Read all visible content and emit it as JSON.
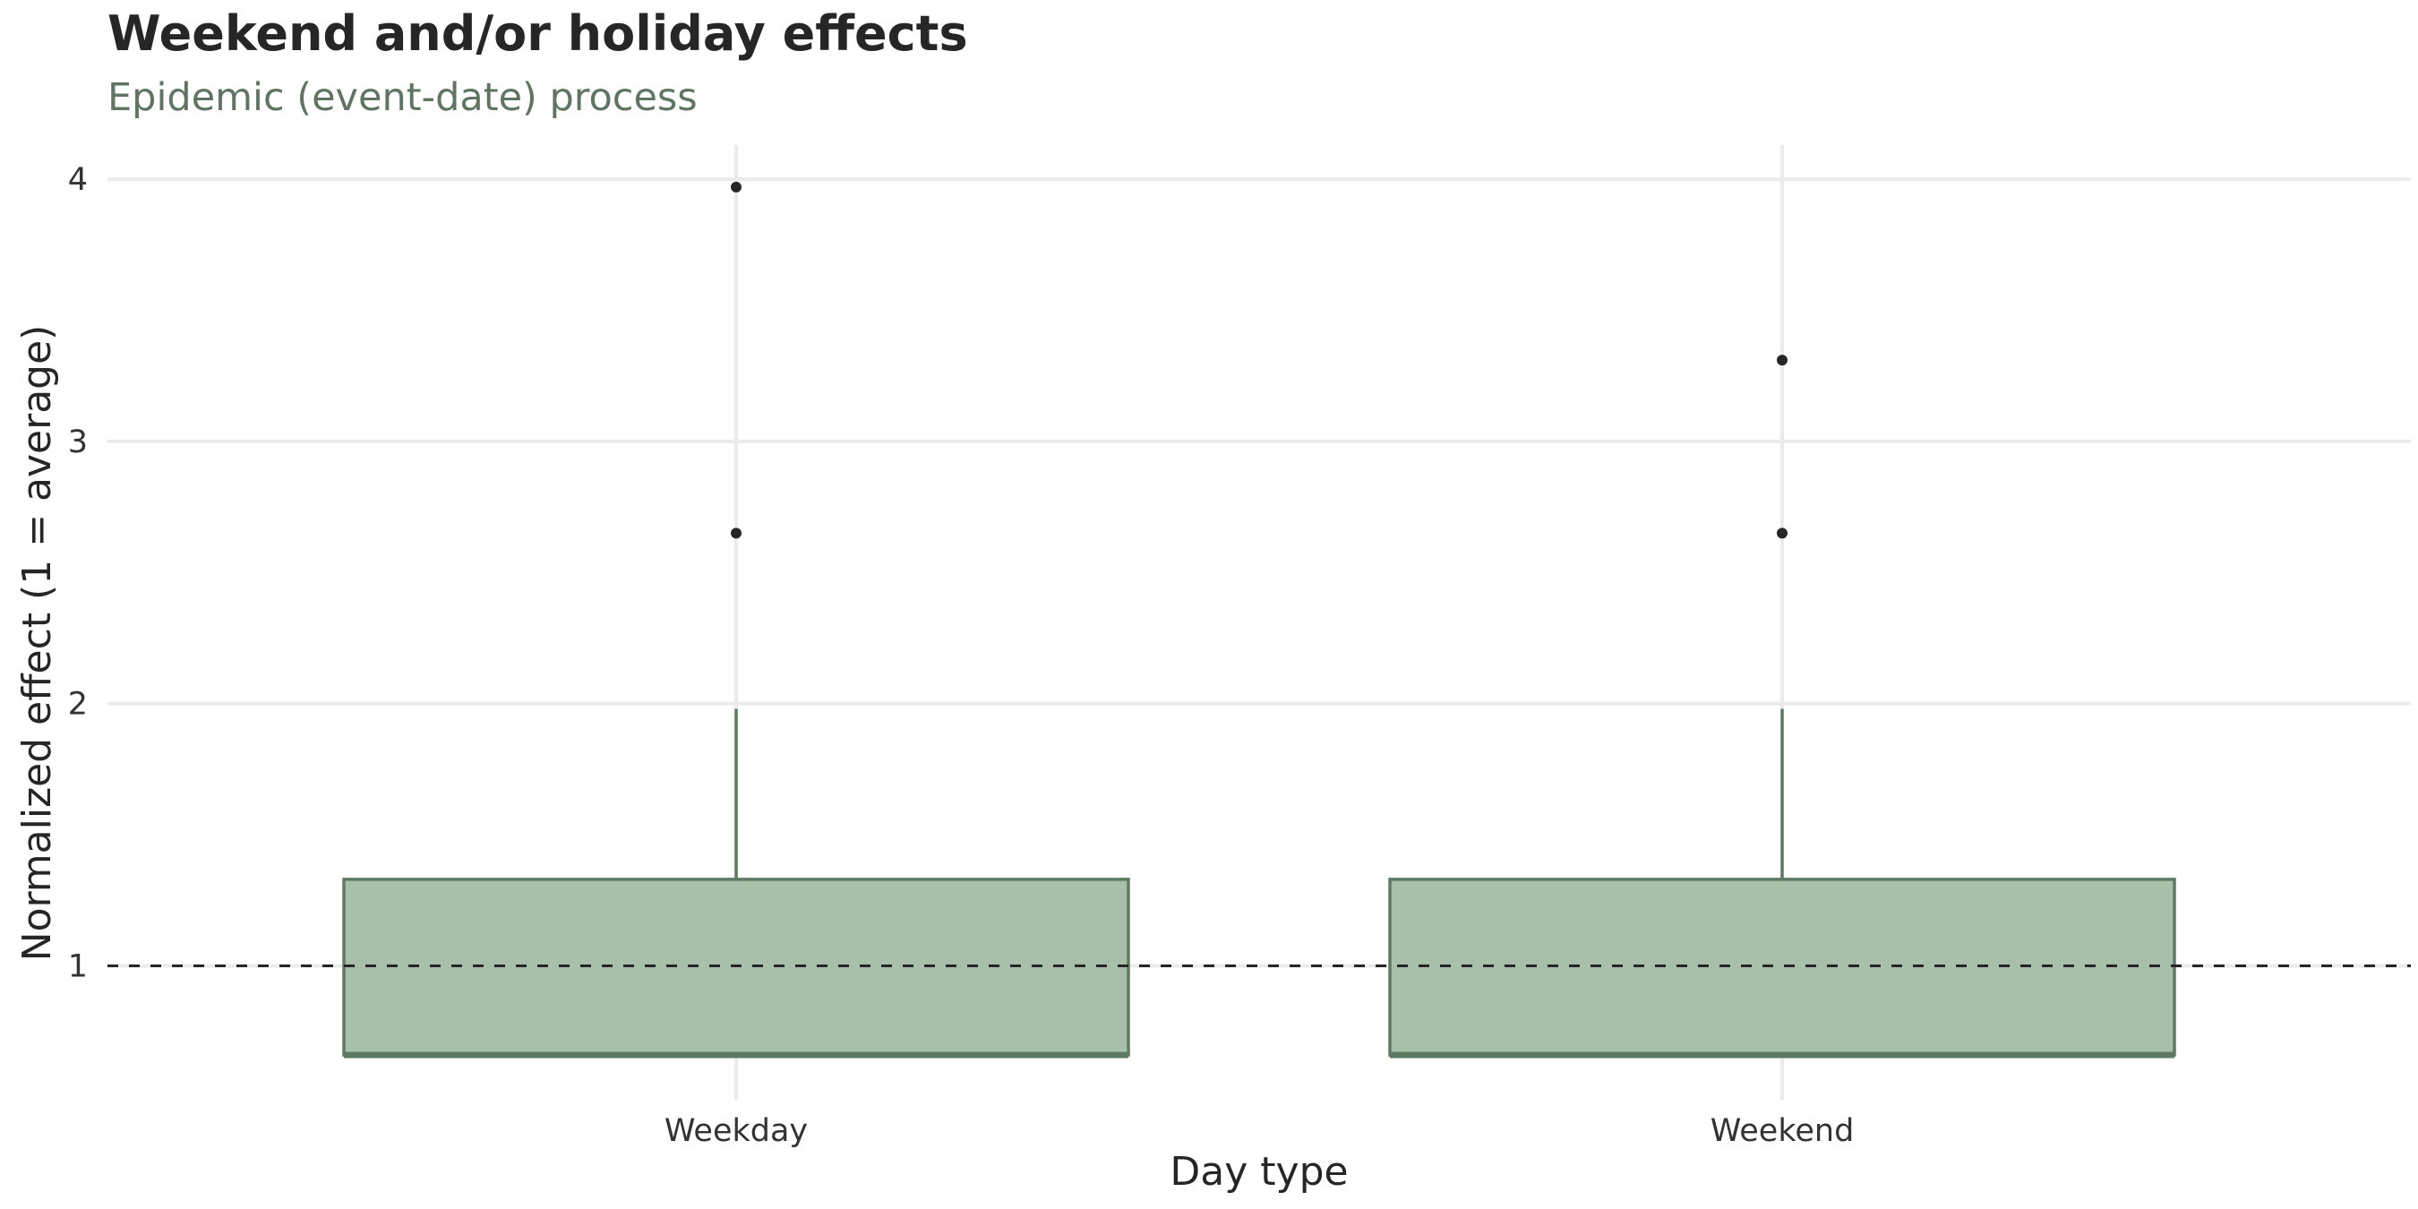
{
  "chart_data": {
    "type": "boxplot",
    "title": "Weekend and/or holiday effects",
    "subtitle": "Epidemic (event-date) process",
    "xlabel": "Day type",
    "ylabel": "Normalized effect (1 = average)",
    "categories": [
      "Weekday",
      "Weekend"
    ],
    "boxes": [
      {
        "category": "Weekday",
        "min": 0.66,
        "q1": 0.66,
        "median": 0.66,
        "q3": 1.33,
        "max": 1.98,
        "outliers": [
          2.65,
          3.97
        ]
      },
      {
        "category": "Weekend",
        "min": 0.66,
        "q1": 0.66,
        "median": 0.66,
        "q3": 1.33,
        "max": 1.98,
        "outliers": [
          2.65,
          3.31
        ]
      }
    ],
    "y_ticks": [
      1,
      2,
      3,
      4
    ],
    "ylim": [
      0.5,
      4.13
    ],
    "reference_line": {
      "y": 1,
      "style": "dashed"
    },
    "grid": true,
    "colors": {
      "box_fill": "#a8c0aa",
      "box_line": "#5f7a62",
      "outlier": "#262626",
      "grid": "#ebebeb",
      "reference": "#262626"
    }
  }
}
